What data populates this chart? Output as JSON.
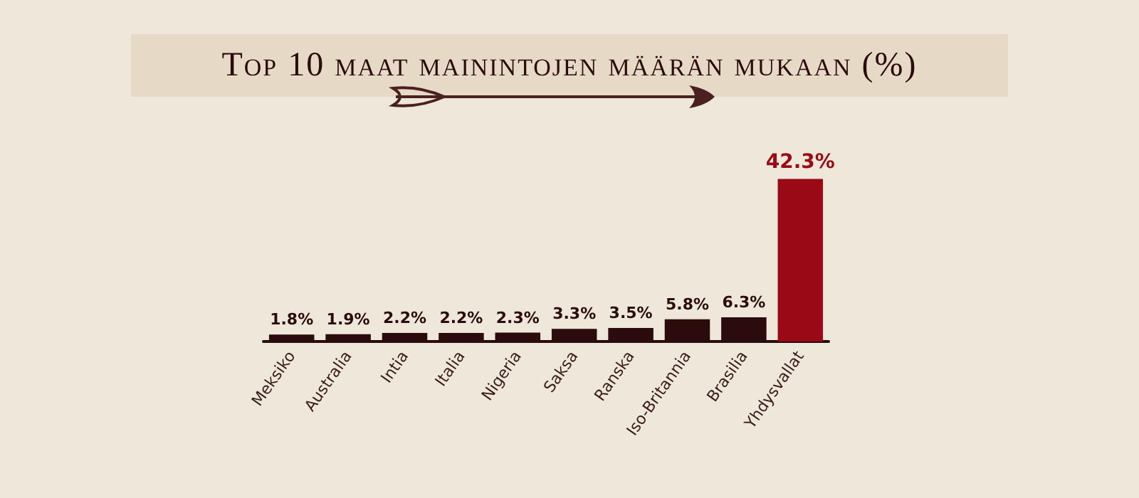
{
  "chart_data": {
    "type": "bar",
    "title": "Top 10 maat mainintojen määrän mukaan (%)",
    "categories": [
      "Meksiko",
      "Australia",
      "Intia",
      "Italia",
      "Nigeria",
      "Saksa",
      "Ranska",
      "Iso-Britannia",
      "Brasilia",
      "Yhdysvallat"
    ],
    "values": [
      1.8,
      1.9,
      2.2,
      2.2,
      2.3,
      3.3,
      3.5,
      5.8,
      6.3,
      42.3
    ],
    "value_labels": [
      "1.8%",
      "1.9%",
      "2.2%",
      "2.2%",
      "2.3%",
      "3.3%",
      "3.5%",
      "5.8%",
      "6.3%",
      "42.3%"
    ],
    "colors": [
      "#2b0b0b",
      "#2b0b0b",
      "#2b0b0b",
      "#2b0b0b",
      "#2b0b0b",
      "#2b0b0b",
      "#2b0b0b",
      "#2b0b0b",
      "#2b0b0b",
      "#9a0a16"
    ],
    "tick_labels": "x"
  }
}
